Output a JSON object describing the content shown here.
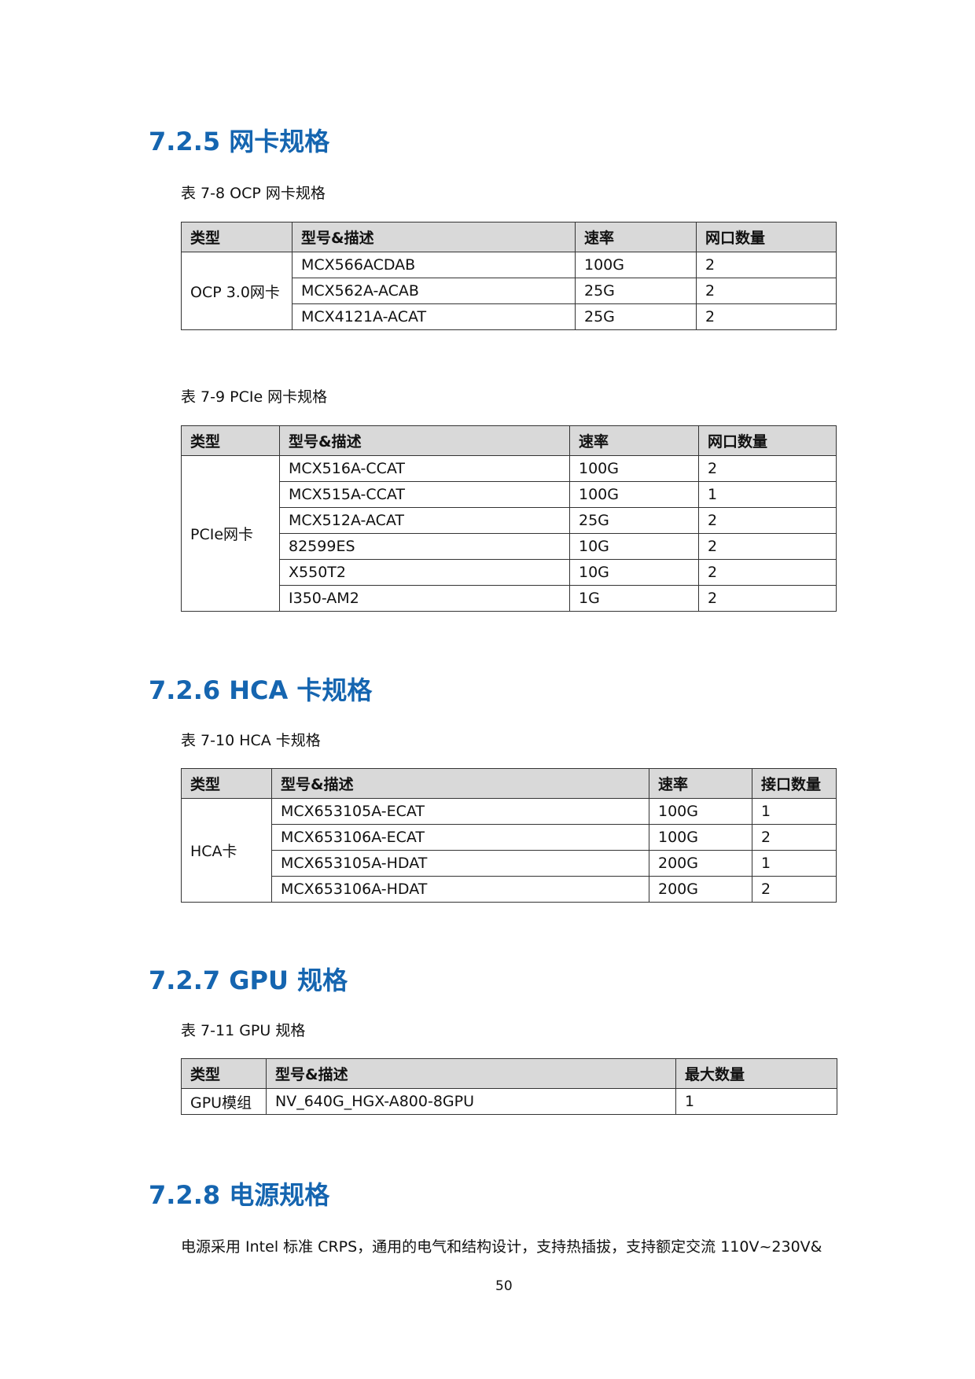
{
  "sections": [
    {
      "heading": "7.2.5  网卡规格"
    },
    {
      "heading": "7.2.6  HCA 卡规格"
    },
    {
      "heading": "7.2.7  GPU 规格"
    },
    {
      "heading": "7.2.8  电源规格"
    }
  ],
  "tables": [
    {
      "caption": "表 7-8 OCP 网卡规格",
      "headers": [
        "类型",
        "型号&描述",
        "速率",
        "网口数量"
      ],
      "group": "OCP 3.0网卡",
      "rows": [
        [
          "MCX566ACDAB",
          "100G",
          "2"
        ],
        [
          "MCX562A-ACAB",
          "25G",
          "2"
        ],
        [
          "MCX4121A-ACAT",
          "25G",
          "2"
        ]
      ]
    },
    {
      "caption": "表 7-9 PCIe 网卡规格",
      "headers": [
        "类型",
        "型号&描述",
        "速率",
        "网口数量"
      ],
      "group": "PCIe网卡",
      "rows": [
        [
          "MCX516A-CCAT",
          "100G",
          "2"
        ],
        [
          "MCX515A-CCAT",
          "100G",
          "1"
        ],
        [
          "MCX512A-ACAT",
          "25G",
          "2"
        ],
        [
          "82599ES",
          "10G",
          "2"
        ],
        [
          "X550T2",
          "10G",
          "2"
        ],
        [
          "I350-AM2",
          "1G",
          "2"
        ]
      ]
    },
    {
      "caption": "表 7-10 HCA 卡规格",
      "headers": [
        "类型",
        "型号&描述",
        "速率",
        "接口数量"
      ],
      "group": "HCA卡",
      "rows": [
        [
          "MCX653105A-ECAT",
          "100G",
          "1"
        ],
        [
          "MCX653106A-ECAT",
          "100G",
          "2"
        ],
        [
          "MCX653105A-HDAT",
          "200G",
          "1"
        ],
        [
          "MCX653106A-HDAT",
          "200G",
          "2"
        ]
      ]
    },
    {
      "caption": "表 7-11 GPU 规格",
      "headers": [
        "类型",
        "型号&描述",
        "最大数量"
      ],
      "rows": [
        [
          "GPU模组",
          "NV_640G_HGX-A800-8GPU",
          "1"
        ]
      ]
    }
  ],
  "paragraph": "电源采用 Intel 标准 CRPS，通用的电气和结构设计，支持热插拔，支持额定交流 110V~230V&",
  "page_number": "50"
}
